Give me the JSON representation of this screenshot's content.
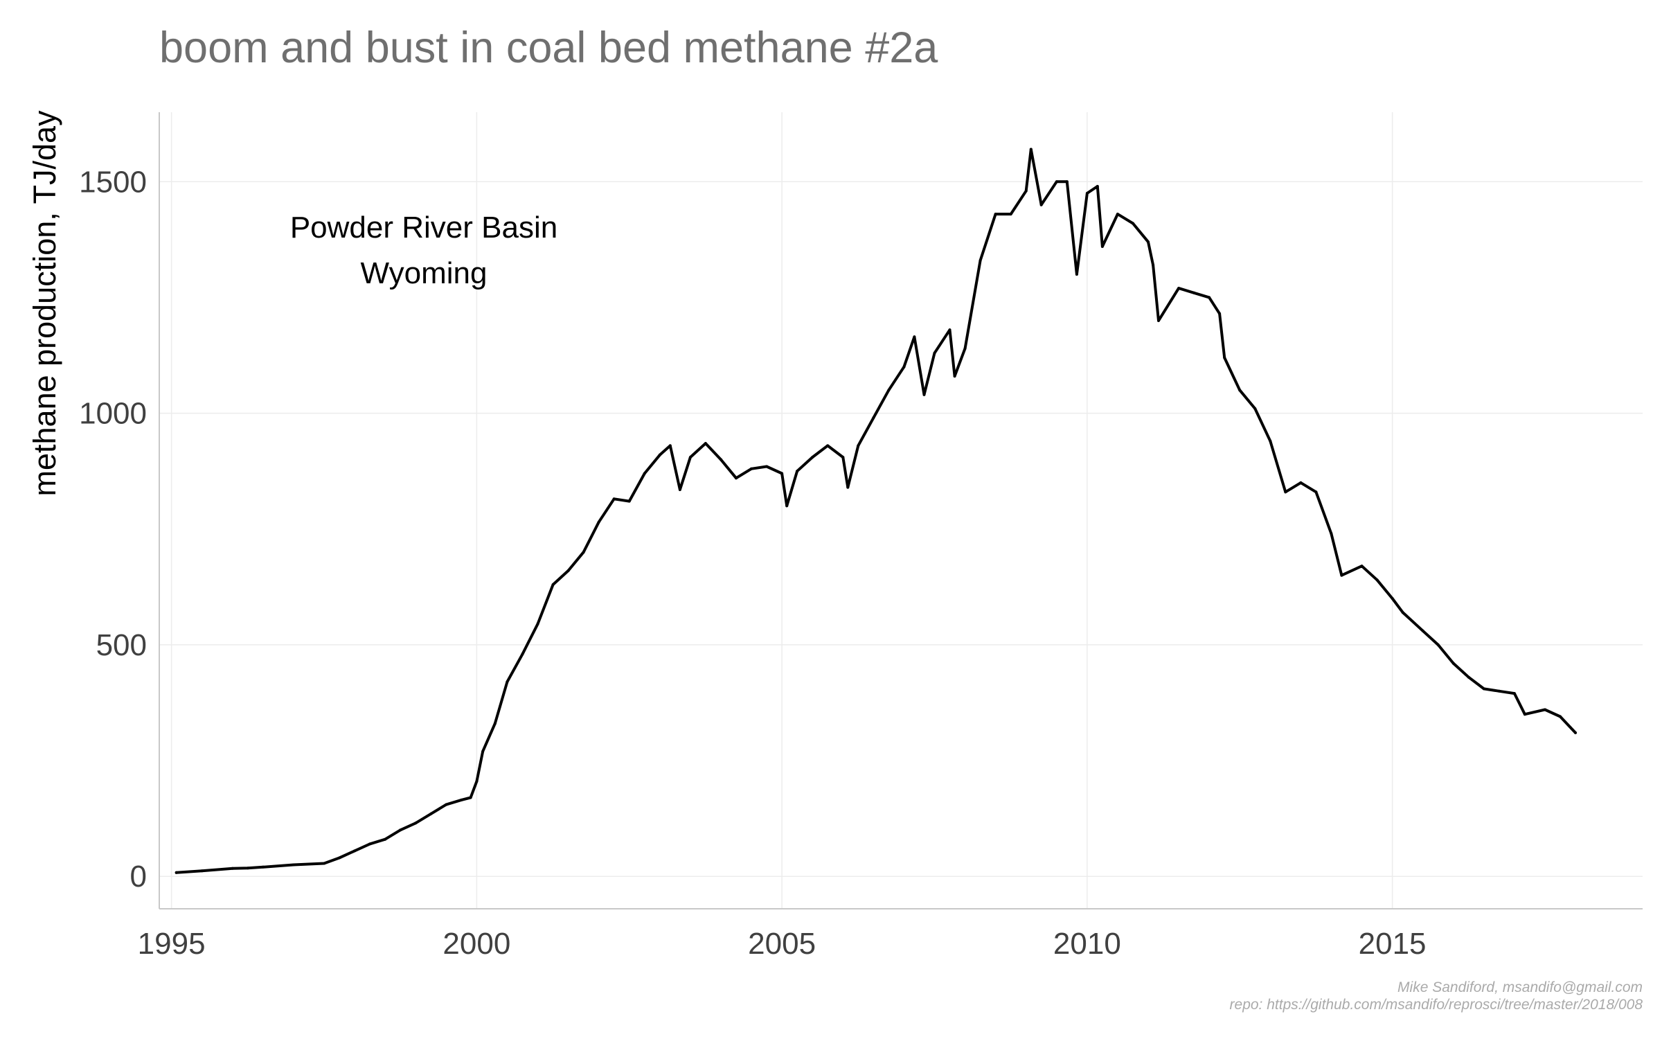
{
  "chart_data": {
    "type": "line",
    "title": "boom and bust in coal bed methane #2a",
    "xlabel": "",
    "ylabel": "methane production, TJ/day",
    "xlim": [
      1994.8,
      2019.1
    ],
    "ylim": [
      -70,
      1650
    ],
    "x_ticks": [
      1995,
      2000,
      2005,
      2010,
      2015
    ],
    "x_tick_labels": [
      "1995",
      "2000",
      "2005",
      "2010",
      "2015"
    ],
    "y_ticks": [
      0,
      500,
      1000,
      1500
    ],
    "y_tick_labels": [
      "0",
      "500",
      "1000",
      "1500"
    ],
    "grid": true,
    "legend": "none",
    "line_color": "#000000",
    "annotation": [
      "Powder River Basin",
      "Wyoming"
    ],
    "caption": [
      "Mike Sandiford, msandifo@gmail.com",
      "repo: https://github.com/msandifo/reprosci/tree/master/2018/008"
    ],
    "series": [
      {
        "x": [
          1995.08,
          1995.5,
          1996.0,
          1996.25,
          1996.5,
          1997.0,
          1997.5,
          1997.75,
          1998.0,
          1998.25,
          1998.5,
          1998.75,
          1999.0,
          1999.25,
          1999.5,
          1999.75,
          1999.9,
          2000.0,
          2000.1,
          2000.3,
          2000.5,
          2000.75,
          2001.0,
          2001.25,
          2001.5,
          2001.75,
          2002.0,
          2002.25,
          2002.5,
          2002.75,
          2003.0,
          2003.17,
          2003.33,
          2003.5,
          2003.75,
          2004.0,
          2004.25,
          2004.5,
          2004.75,
          2005.0,
          2005.08,
          2005.25,
          2005.5,
          2005.75,
          2006.0,
          2006.08,
          2006.25,
          2006.5,
          2006.75,
          2007.0,
          2007.17,
          2007.33,
          2007.5,
          2007.75,
          2007.83,
          2008.0,
          2008.25,
          2008.5,
          2008.75,
          2009.0,
          2009.08,
          2009.25,
          2009.5,
          2009.67,
          2009.83,
          2010.0,
          2010.17,
          2010.25,
          2010.5,
          2010.75,
          2011.0,
          2011.08,
          2011.17,
          2011.5,
          2011.75,
          2012.0,
          2012.17,
          2012.25,
          2012.5,
          2012.75,
          2013.0,
          2013.25,
          2013.5,
          2013.75,
          2014.0,
          2014.17,
          2014.5,
          2014.75,
          2015.0,
          2015.17,
          2015.5,
          2015.75,
          2016.0,
          2016.25,
          2016.5,
          2016.75,
          2017.0,
          2017.17,
          2017.5,
          2017.75,
          2018.0
        ],
        "y": [
          8,
          12,
          17,
          18,
          20,
          25,
          28,
          40,
          55,
          70,
          80,
          100,
          115,
          135,
          155,
          165,
          170,
          205,
          270,
          330,
          420,
          480,
          545,
          630,
          660,
          700,
          765,
          815,
          810,
          870,
          910,
          930,
          835,
          905,
          935,
          900,
          860,
          880,
          885,
          870,
          800,
          875,
          905,
          930,
          905,
          840,
          930,
          990,
          1050,
          1100,
          1165,
          1040,
          1130,
          1180,
          1080,
          1140,
          1330,
          1430,
          1430,
          1480,
          1570,
          1450,
          1500,
          1500,
          1300,
          1475,
          1490,
          1360,
          1430,
          1410,
          1370,
          1320,
          1200,
          1270,
          1260,
          1250,
          1215,
          1120,
          1050,
          1010,
          940,
          830,
          850,
          830,
          740,
          650,
          670,
          640,
          600,
          570,
          530,
          500,
          460,
          430,
          405,
          400,
          395,
          350,
          360,
          345,
          310
        ]
      }
    ]
  }
}
